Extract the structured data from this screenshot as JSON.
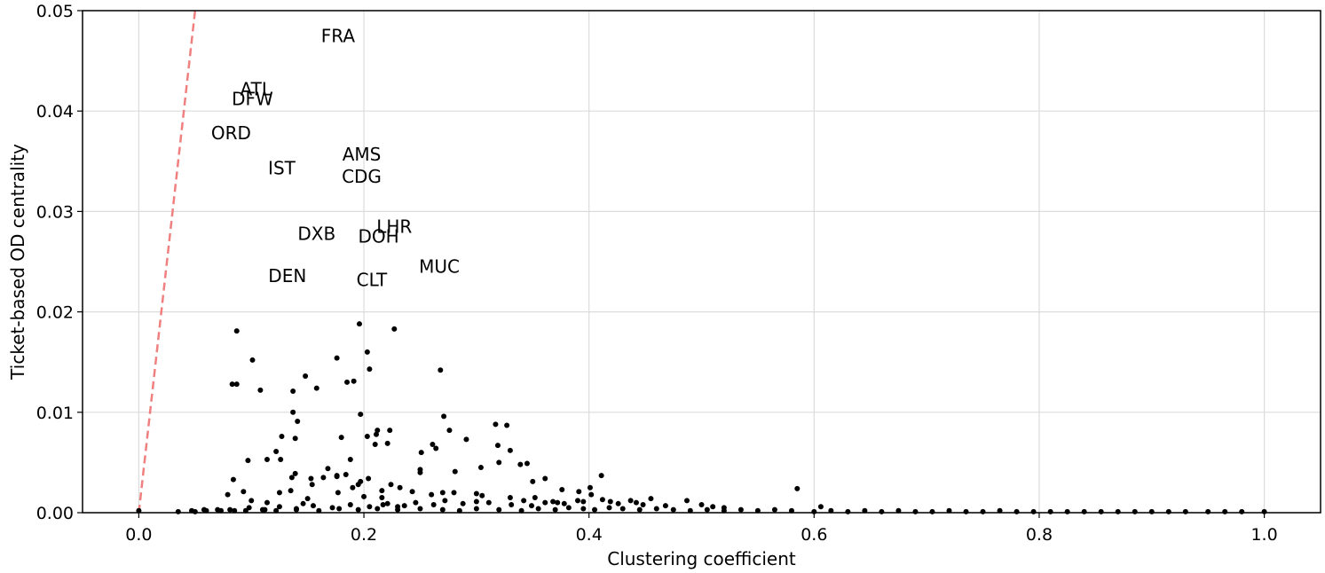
{
  "chart_data": {
    "type": "scatter",
    "xlabel": "Clustering coefficient",
    "ylabel": "Ticket-based OD centrality",
    "xlim": [
      -0.05,
      1.05
    ],
    "ylim": [
      0,
      0.05
    ],
    "x_ticks": [
      0.0,
      0.2,
      0.4,
      0.6,
      0.8,
      1.0
    ],
    "x_tick_labels": [
      "0.0",
      "0.2",
      "0.4",
      "0.6",
      "0.8",
      "1.0"
    ],
    "y_ticks": [
      0.0,
      0.01,
      0.02,
      0.03,
      0.04,
      0.05
    ],
    "y_tick_labels": [
      "0.00",
      "0.01",
      "0.02",
      "0.03",
      "0.04",
      "0.05"
    ],
    "grid": true,
    "point_color": "#000000",
    "reference_line": {
      "x": [
        0.0,
        0.05
      ],
      "y": [
        0.0,
        0.05
      ],
      "color": "#f08080",
      "style": "dashed"
    },
    "annotations": [
      {
        "label": "FRA",
        "x": 0.177,
        "y": 0.0475
      },
      {
        "label": "ATL",
        "x": 0.104,
        "y": 0.0422
      },
      {
        "label": "DFW",
        "x": 0.101,
        "y": 0.0412
      },
      {
        "label": "ORD",
        "x": 0.082,
        "y": 0.0378
      },
      {
        "label": "IST",
        "x": 0.127,
        "y": 0.0343
      },
      {
        "label": "AMS",
        "x": 0.198,
        "y": 0.0357
      },
      {
        "label": "CDG",
        "x": 0.198,
        "y": 0.0335
      },
      {
        "label": "LHR",
        "x": 0.227,
        "y": 0.0285
      },
      {
        "label": "DXB",
        "x": 0.158,
        "y": 0.0278
      },
      {
        "label": "DOH",
        "x": 0.213,
        "y": 0.0275
      },
      {
        "label": "MUC",
        "x": 0.267,
        "y": 0.0245
      },
      {
        "label": "DEN",
        "x": 0.132,
        "y": 0.0236
      },
      {
        "label": "CLT",
        "x": 0.207,
        "y": 0.0232
      }
    ],
    "points": {
      "x": [
        0.087,
        0.196,
        0.227,
        0.176,
        0.203,
        0.101,
        0.268,
        0.148,
        0.205,
        0.185,
        0.158,
        0.191,
        0.083,
        0.087,
        0.108,
        0.137,
        0.197,
        0.137,
        0.141,
        0.271,
        0.317,
        0.212,
        0.327,
        0.276,
        0.223,
        0.18,
        0.203,
        0.127,
        0.139,
        0.211,
        0.291,
        0.261,
        0.21,
        0.221,
        0.304,
        0.32,
        0.264,
        0.251,
        0.114,
        0.122,
        0.097,
        0.126,
        0.188,
        0.345,
        0.281,
        0.339,
        0.168,
        0.319,
        0.25,
        0.33,
        0.411,
        0.139,
        0.25,
        0.176,
        0.361,
        0.184,
        0.153,
        0.164,
        0.084,
        0.136,
        0.197,
        0.195,
        0.204,
        0.27,
        0.154,
        0.079,
        0.224,
        0.216,
        0.585,
        0.35,
        0.401,
        0.216,
        0.093,
        0.125,
        0.1,
        0.177,
        0.2,
        0.19,
        0.15,
        0.135,
        0.26,
        0.28,
        0.232,
        0.243,
        0.3,
        0.305,
        0.376,
        0.33,
        0.391,
        0.402,
        0.455,
        0.487,
        0.176,
        0.146,
        0.114,
        0.217,
        0.23,
        0.311,
        0.331,
        0.349,
        0.368,
        0.378,
        0.419,
        0.448,
        0.442,
        0.468,
        0.51,
        0.5,
        0.52,
        0.606,
        0.0,
        0.035,
        0.047,
        0.058,
        0.073,
        0.081,
        0.095,
        0.11,
        0.122,
        0.14,
        0.16,
        0.178,
        0.195,
        0.212,
        0.23,
        0.25,
        0.27,
        0.285,
        0.3,
        0.32,
        0.34,
        0.355,
        0.37,
        0.382,
        0.395,
        0.405,
        0.418,
        0.43,
        0.445,
        0.46,
        0.475,
        0.49,
        0.505,
        0.52,
        0.535,
        0.55,
        0.565,
        0.58,
        0.6,
        0.615,
        0.63,
        0.645,
        0.66,
        0.675,
        0.69,
        0.705,
        0.72,
        0.735,
        0.75,
        0.765,
        0.78,
        0.795,
        0.81,
        0.825,
        0.84,
        0.855,
        0.87,
        0.885,
        0.9,
        0.915,
        0.93,
        0.95,
        0.965,
        0.98,
        1.0,
        0.39,
        0.372,
        0.395,
        0.412,
        0.426,
        0.437,
        0.352,
        0.361,
        0.342,
        0.3,
        0.288,
        0.272,
        0.262,
        0.246,
        0.236,
        0.221,
        0.205,
        0.188,
        0.172,
        0.155,
        0.14,
        0.125,
        0.112,
        0.098,
        0.085,
        0.07,
        0.06,
        0.05
      ],
      "y": [
        0.0181,
        0.0188,
        0.0183,
        0.0154,
        0.016,
        0.0152,
        0.0142,
        0.0136,
        0.0143,
        0.013,
        0.0124,
        0.0131,
        0.0128,
        0.0128,
        0.0122,
        0.0121,
        0.0098,
        0.01,
        0.0091,
        0.0096,
        0.0088,
        0.0082,
        0.0087,
        0.0082,
        0.0082,
        0.0075,
        0.0076,
        0.0076,
        0.0074,
        0.0078,
        0.0073,
        0.0068,
        0.0068,
        0.0069,
        0.0045,
        0.005,
        0.0064,
        0.006,
        0.0053,
        0.0061,
        0.0052,
        0.0053,
        0.0053,
        0.0049,
        0.0041,
        0.0048,
        0.0044,
        0.0067,
        0.004,
        0.0062,
        0.0037,
        0.0039,
        0.0043,
        0.0037,
        0.0034,
        0.0038,
        0.0034,
        0.0035,
        0.0033,
        0.0035,
        0.0031,
        0.0028,
        0.0034,
        0.002,
        0.0028,
        0.0018,
        0.0028,
        0.0022,
        0.0024,
        0.0031,
        0.0025,
        0.0015,
        0.0021,
        0.002,
        0.0012,
        0.002,
        0.0016,
        0.0025,
        0.0014,
        0.0022,
        0.0018,
        0.002,
        0.0025,
        0.0021,
        0.0019,
        0.0017,
        0.0023,
        0.0015,
        0.0021,
        0.0018,
        0.0014,
        0.0012,
        0.0036,
        0.0009,
        0.001,
        0.0008,
        0.0006,
        0.001,
        0.0008,
        0.0007,
        0.0011,
        0.0009,
        0.0011,
        0.0008,
        0.001,
        0.0007,
        0.0006,
        0.0008,
        0.0005,
        0.0006,
        0.0002,
        0.0001,
        0.0002,
        0.0003,
        0.0002,
        0.0003,
        0.0002,
        0.0003,
        0.0002,
        0.0003,
        0.0002,
        0.0004,
        0.0003,
        0.0004,
        0.0003,
        0.0004,
        0.0003,
        0.0002,
        0.0004,
        0.0003,
        0.0002,
        0.0004,
        0.0003,
        0.0005,
        0.0004,
        0.0003,
        0.0005,
        0.0004,
        0.0003,
        0.0004,
        0.0003,
        0.0002,
        0.0003,
        0.0002,
        0.0003,
        0.0002,
        0.0003,
        0.0002,
        0.0001,
        0.0002,
        0.0001,
        0.0002,
        0.0001,
        0.0002,
        0.0001,
        0.0001,
        0.0002,
        0.0001,
        0.0001,
        0.0002,
        0.0001,
        0.0001,
        0.0001,
        0.0001,
        0.0001,
        0.0001,
        0.0001,
        0.0001,
        0.0001,
        0.0001,
        0.0001,
        0.0001,
        0.0001,
        0.0001,
        0.0001,
        0.0012,
        0.001,
        0.0011,
        0.0013,
        0.0009,
        0.0012,
        0.0015,
        0.001,
        0.0012,
        0.0011,
        0.0009,
        0.0012,
        0.0008,
        0.001,
        0.0007,
        0.0009,
        0.0006,
        0.0008,
        0.0005,
        0.0007,
        0.0004,
        0.0006,
        0.0003,
        0.0005,
        0.0002,
        0.0003,
        0.0002,
        0.0001
      ]
    }
  }
}
